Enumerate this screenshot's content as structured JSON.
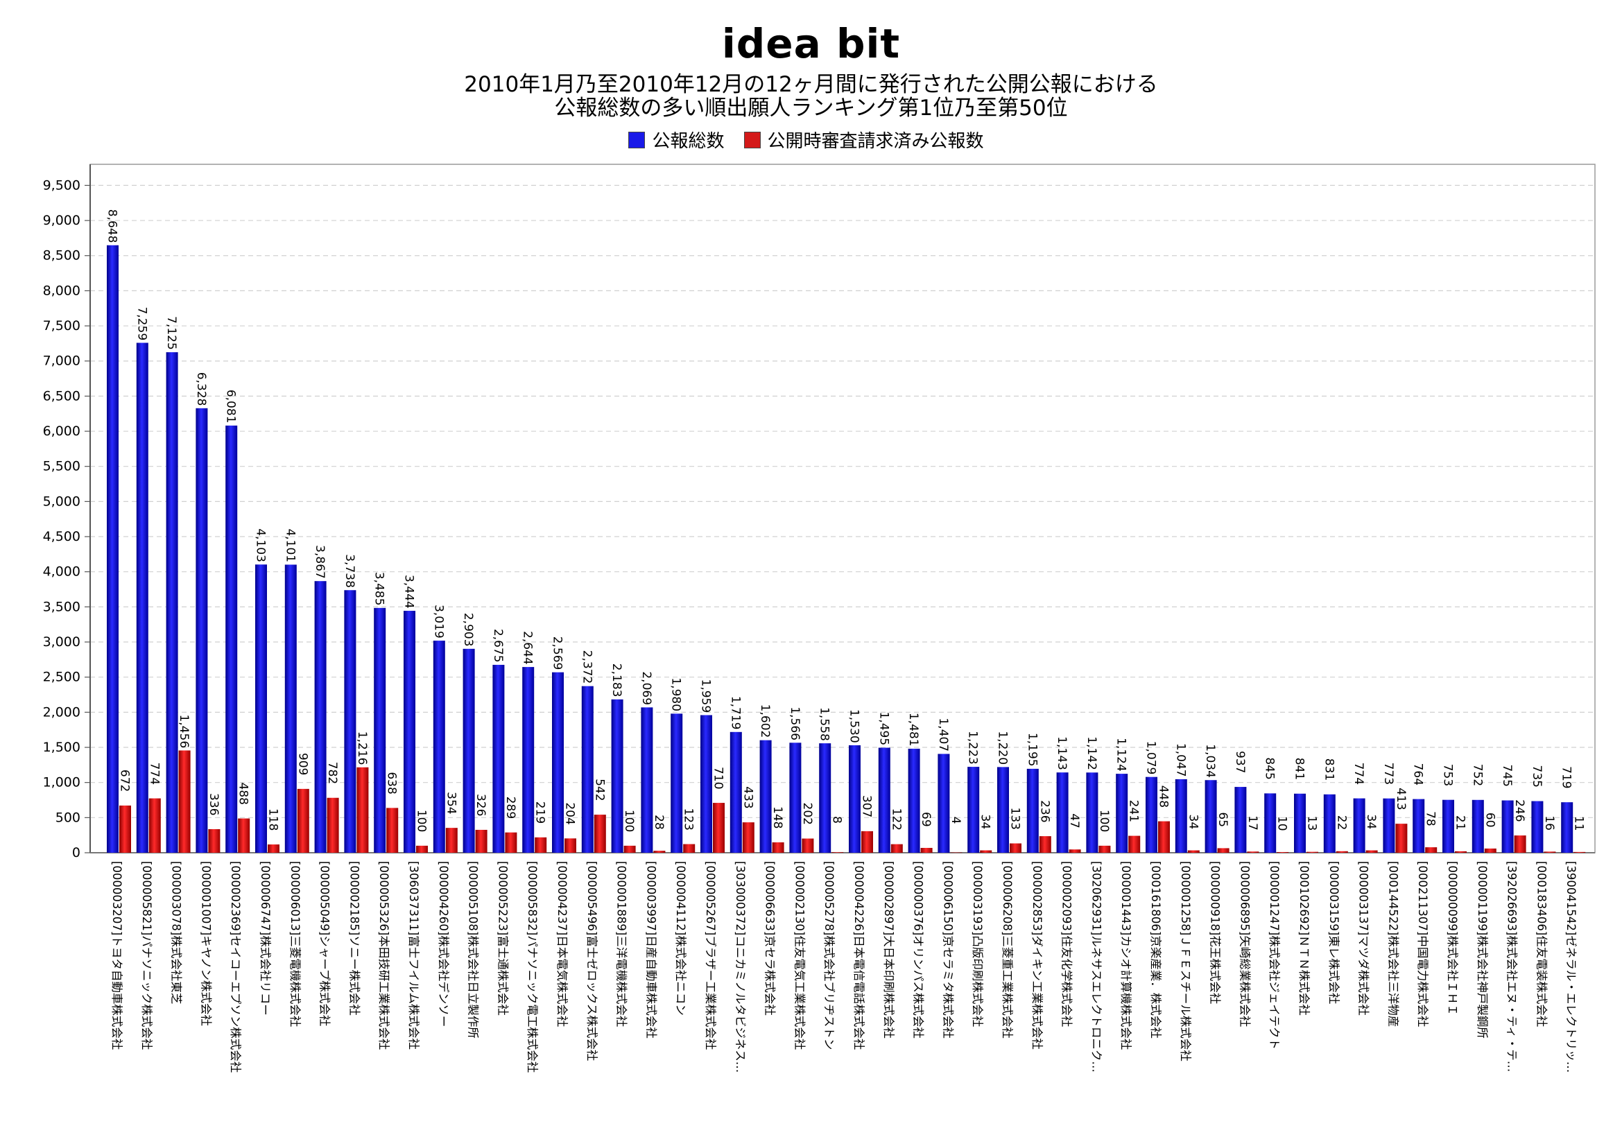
{
  "header": {
    "logo_text": "idea bit",
    "title_line1": "2010年1月乃至2010年12月の12ヶ月間に発行された公開公報における",
    "title_line2": "公報総数の多い順出願人ランキング第1位乃至第50位"
  },
  "legend": {
    "series1_label": "公報総数",
    "series2_label": "公開時審査請求済み公報数",
    "series1_color": "#1a1ae8",
    "series2_color": "#d41a1a"
  },
  "chart_data": {
    "type": "bar",
    "ylim": [
      0,
      9800
    ],
    "y_ticks": [
      0,
      500,
      1000,
      1500,
      2000,
      2500,
      3000,
      3500,
      4000,
      4500,
      5000,
      5500,
      6000,
      6500,
      7000,
      7500,
      8000,
      8500,
      9000,
      9500
    ],
    "y_tick_labels": [
      "0",
      "500",
      "1,000",
      "1,500",
      "2,000",
      "2,500",
      "3,000",
      "3,500",
      "4,000",
      "4,500",
      "5,000",
      "5,500",
      "6,000",
      "6,500",
      "7,000",
      "7,500",
      "8,000",
      "8,500",
      "9,000",
      "9,500"
    ],
    "grid": true,
    "legend_position": "top",
    "categories": [
      "[000003207]トヨタ自動車株式会社",
      "[000005821]パナソニック株式会社",
      "[000003078]株式会社東芝",
      "[000001007]キヤノン株式会社",
      "[000002369]セイコーエプソン株式会社",
      "[000006747]株式会社リコー",
      "[000006013]三菱電機株式会社",
      "[000005049]シャープ株式会社",
      "[000002185]ソニー株式会社",
      "[000005326]本田技研工業株式会社",
      "[306037311]富士フイルム株式会社",
      "[000004260]株式会社デンソー",
      "[000005108]株式会社日立製作所",
      "[000005223]富士通株式会社",
      "[000005832]パナソニック電工株式会社",
      "[000004237]日本電気株式会社",
      "[000005496]富士ゼロックス株式会社",
      "[000001889]三洋電機株式会社",
      "[000003997]日産自動車株式会社",
      "[000004112]株式会社ニコン",
      "[000005267]ブラザー工業株式会社",
      "[303000372]コニカミノルタビジネス…",
      "[000006633]京セラ株式会社",
      "[000002130]住友電気工業株式会社",
      "[000005278]株式会社ブリヂストン",
      "[000004226]日本電信電話株式会社",
      "[000002897]大日本印刷株式会社",
      "[000000376]オリンパス株式会社",
      "[000006150]京セラミタ株式会社",
      "[000003193]凸版印刷株式会社",
      "[000006208]三菱重工業株式会社",
      "[000002853]ダイキン工業株式会社",
      "[000002093]住友化学株式会社",
      "[302062931]ルネサスエレクトロニク…",
      "[000001443]カシオ計算機株式会社",
      "[000161806]京楽産業．株式会社",
      "[000001258]ＪＦＥスチール株式会社",
      "[000000918]花王株式会社",
      "[000006895]矢崎総業株式会社",
      "[000001247]株式会社ジェイテクト",
      "[000102692]ＮＴＮ株式会社",
      "[000003159]東レ株式会社",
      "[000003137]マツダ株式会社",
      "[000144522]株式会社三洋物産",
      "[000211307]中国電力株式会社",
      "[000000099]株式会社ＩＨＩ",
      "[000001199]株式会社神戸製鋼所",
      "[392026693]株式会社エヌ・ティ・テ…",
      "[000183406]住友電装株式会社",
      "[390041542]ゼネラル・エレクトリッ…"
    ],
    "series": [
      {
        "name": "公報総数",
        "values": [
          8648,
          7259,
          7125,
          6328,
          6081,
          4103,
          4101,
          3867,
          3738,
          3485,
          3444,
          3019,
          2903,
          2675,
          2644,
          2569,
          2372,
          2183,
          2069,
          1980,
          1959,
          1719,
          1602,
          1566,
          1558,
          1530,
          1495,
          1481,
          1407,
          1223,
          1220,
          1195,
          1143,
          1142,
          1124,
          1079,
          1047,
          1034,
          937,
          845,
          841,
          831,
          774,
          773,
          764,
          753,
          752,
          745,
          735,
          719
        ],
        "labels": [
          "8,648",
          "7,259",
          "7,125",
          "6,328",
          "6,081",
          "4,103",
          "4,101",
          "3,867",
          "3,738",
          "3,485",
          "3,444",
          "3,019",
          "2,903",
          "2,675",
          "2,644",
          "2,569",
          "2,372",
          "2,183",
          "2,069",
          "1,980",
          "1,959",
          "1,719",
          "1,602",
          "1,566",
          "1,558",
          "1,530",
          "1,495",
          "1,481",
          "1,407",
          "1,223",
          "1,220",
          "1,195",
          "1,143",
          "1,142",
          "1,124",
          "1,079",
          "1,047",
          "1,034",
          "937",
          "845",
          "841",
          "831",
          "774",
          "773",
          "764",
          "753",
          "752",
          "745",
          "735",
          "719"
        ]
      },
      {
        "name": "公開時審査請求済み公報数",
        "values": [
          672,
          774,
          1456,
          336,
          488,
          118,
          909,
          782,
          1216,
          638,
          100,
          354,
          326,
          289,
          219,
          204,
          542,
          100,
          28,
          123,
          710,
          433,
          148,
          202,
          8,
          307,
          122,
          69,
          4,
          34,
          133,
          236,
          47,
          100,
          241,
          448,
          34,
          65,
          17,
          10,
          13,
          22,
          34,
          413,
          78,
          21,
          60,
          246,
          16,
          11
        ],
        "labels": [
          "672",
          "774",
          "1,456",
          "336",
          "488",
          "118",
          "909",
          "782",
          "1,216",
          "638",
          "100",
          "354",
          "326",
          "289",
          "219",
          "204",
          "542",
          "100",
          "28",
          "123",
          "710",
          "433",
          "148",
          "202",
          "8",
          "307",
          "122",
          "69",
          "4",
          "34",
          "133",
          "236",
          "47",
          "100",
          "241",
          "448",
          "34",
          "65",
          "17",
          "10",
          "13",
          "22",
          "34",
          "413",
          "78",
          "21",
          "60",
          "246",
          "16",
          "11"
        ]
      }
    ]
  }
}
